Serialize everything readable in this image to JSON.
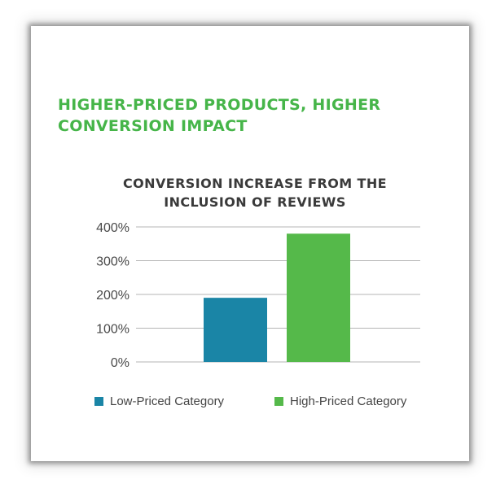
{
  "headline": "HIGHER-PRICED PRODUCTS, HIGHER CONVERSION IMPACT",
  "colors": {
    "low": "#1a85a6",
    "high": "#55b94a",
    "headline": "#46b549",
    "grid": "#b5b5b5"
  },
  "chart_data": {
    "type": "bar",
    "title": "CONVERSION INCREASE FROM THE INCLUSION OF REVIEWS",
    "xlabel": "",
    "ylabel": "",
    "ylim": [
      0,
      400
    ],
    "yticks": [
      0,
      100,
      200,
      300,
      400
    ],
    "ytick_labels": [
      "0%",
      "100%",
      "200%",
      "300%",
      "400%"
    ],
    "grid": true,
    "legend_position": "bottom",
    "series": [
      {
        "name": "Low-Priced Category",
        "values": [
          190
        ],
        "color": "#1a85a6"
      },
      {
        "name": "High-Priced Category",
        "values": [
          380
        ],
        "color": "#55b94a"
      }
    ]
  }
}
